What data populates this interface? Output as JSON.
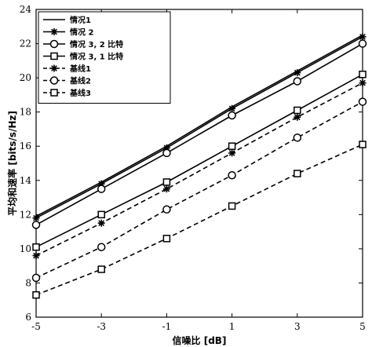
{
  "chart_data": {
    "type": "line",
    "xlabel": "信噪比 [dB]",
    "ylabel": "平均和速率 [bits/s/Hz]",
    "xlim": [
      -5,
      5
    ],
    "ylim": [
      6,
      24
    ],
    "x_ticks": [
      -5,
      -3,
      -1,
      1,
      3,
      5
    ],
    "y_ticks": [
      6,
      8,
      10,
      12,
      14,
      16,
      18,
      20,
      22,
      24
    ],
    "grid": false,
    "legend_position": "top-left",
    "x": [
      -5,
      -3,
      -1,
      1,
      3,
      5
    ],
    "series": [
      {
        "name": "情况1",
        "values": [
          11.9,
          13.9,
          16.0,
          18.3,
          20.4,
          22.5
        ],
        "marker": "none",
        "line": "solid"
      },
      {
        "name": "情况 2",
        "values": [
          11.8,
          13.8,
          15.9,
          18.2,
          20.3,
          22.4
        ],
        "marker": "star",
        "line": "solid"
      },
      {
        "name": "情况 3, 2 比特",
        "values": [
          11.4,
          13.5,
          15.6,
          17.8,
          19.8,
          22.0
        ],
        "marker": "circle",
        "line": "solid"
      },
      {
        "name": "情况 3, 1 比特",
        "values": [
          10.1,
          12.0,
          13.9,
          16.0,
          18.1,
          20.2
        ],
        "marker": "square",
        "line": "solid"
      },
      {
        "name": "基线1",
        "values": [
          9.6,
          11.5,
          13.5,
          15.6,
          17.7,
          19.7
        ],
        "marker": "star",
        "line": "dashed"
      },
      {
        "name": "基线2",
        "values": [
          8.3,
          10.1,
          12.3,
          14.3,
          16.5,
          18.6
        ],
        "marker": "circle",
        "line": "dashed"
      },
      {
        "name": "基线3",
        "values": [
          7.3,
          8.8,
          10.6,
          12.5,
          14.4,
          16.1
        ],
        "marker": "square",
        "line": "dashed"
      }
    ]
  }
}
